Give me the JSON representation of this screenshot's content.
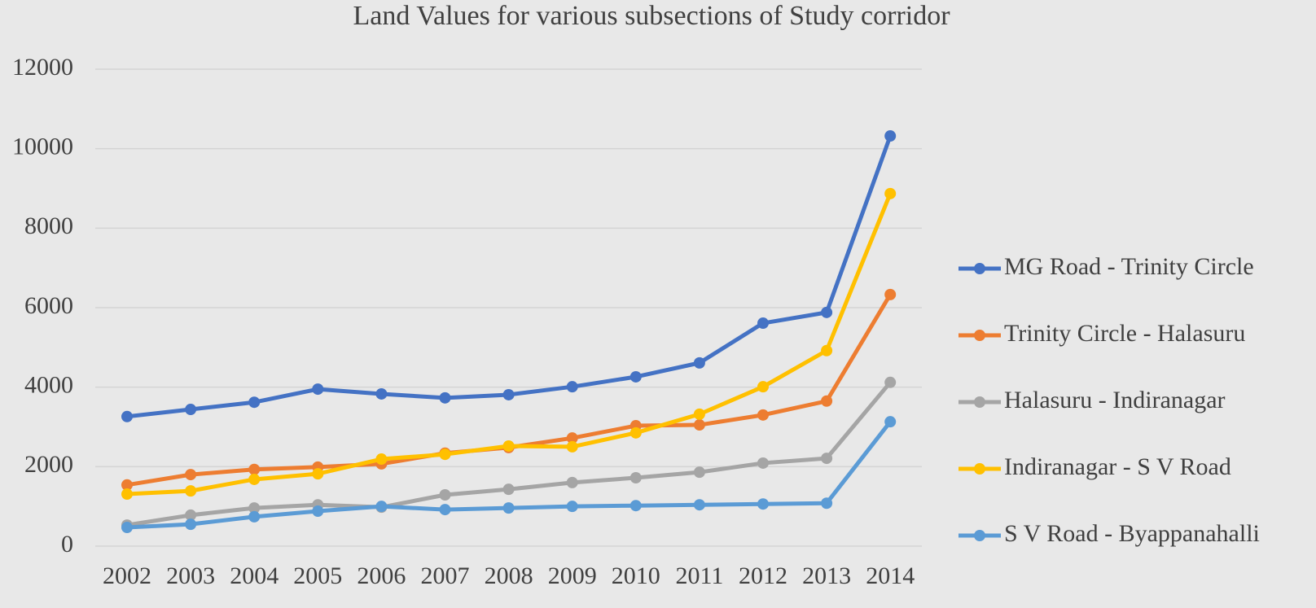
{
  "chart_data": {
    "type": "line",
    "title": "Land Values for various subsections of Study corridor",
    "categories": [
      "2002",
      "2003",
      "2004",
      "2005",
      "2006",
      "2007",
      "2008",
      "2009",
      "2010",
      "2011",
      "2012",
      "2013",
      "2014"
    ],
    "series": [
      {
        "name": "MG Road - Trinity Circle",
        "color": "#4472c4",
        "values": [
          3260,
          3440,
          3620,
          3950,
          3830,
          3730,
          3810,
          4010,
          4260,
          4610,
          5610,
          5880,
          10320
        ]
      },
      {
        "name": "Trinity Circle - Halasuru",
        "color": "#ed7d31",
        "values": [
          1540,
          1800,
          1930,
          1990,
          2070,
          2340,
          2480,
          2720,
          3030,
          3050,
          3300,
          3650,
          6330
        ]
      },
      {
        "name": "Halasuru - Indiranagar",
        "color": "#a5a5a5",
        "values": [
          530,
          780,
          960,
          1040,
          980,
          1290,
          1430,
          1600,
          1720,
          1860,
          2090,
          2210,
          4120
        ]
      },
      {
        "name": "Indiranagar - S V Road",
        "color": "#ffc000",
        "values": [
          1310,
          1390,
          1680,
          1820,
          2190,
          2310,
          2520,
          2500,
          2850,
          3320,
          4010,
          4920,
          8870
        ]
      },
      {
        "name": "S V Road - Byappanahalli",
        "color": "#5b9bd5",
        "values": [
          470,
          550,
          740,
          880,
          1000,
          920,
          960,
          1000,
          1020,
          1040,
          1060,
          1080,
          3130
        ]
      }
    ],
    "ylim": [
      0,
      12000
    ],
    "yticks": [
      0,
      2000,
      4000,
      6000,
      8000,
      10000,
      12000
    ],
    "grid": true,
    "legend": "right"
  }
}
